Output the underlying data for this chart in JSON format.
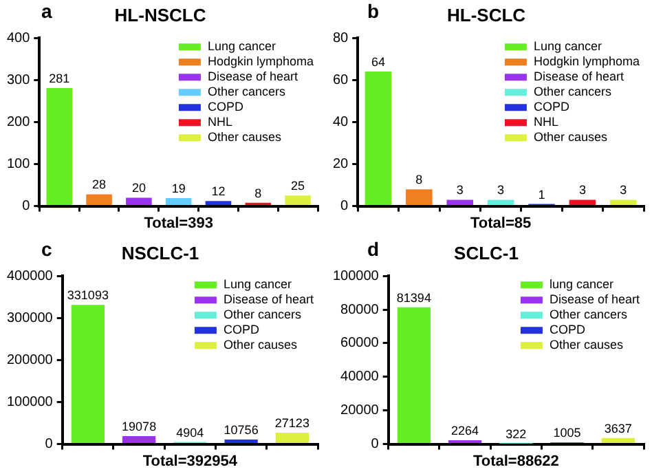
{
  "chart_data": [
    {
      "type": "bar",
      "title": "HL-NSCLC",
      "xlabel": "Total=393",
      "annotations": [
        "a"
      ],
      "categories": [
        null,
        null,
        null,
        null,
        null,
        null,
        null
      ],
      "ylim": [
        0,
        400
      ],
      "yticks": [
        0,
        100,
        200,
        300,
        400
      ],
      "grid": false,
      "legend": "top right",
      "data_labels": true,
      "tick_labels": "y",
      "series": [
        {
          "name": "Lung cancer",
          "color": "#66ee22",
          "values": [
            281,
            null,
            null,
            null,
            null,
            null,
            null
          ]
        },
        {
          "name": "Hodgkin lymphoma",
          "color": "#f07f20",
          "values": [
            null,
            28,
            null,
            null,
            null,
            null,
            null
          ]
        },
        {
          "name": "Disease of heart",
          "color": "#9933ee",
          "values": [
            null,
            null,
            20,
            null,
            null,
            null,
            null
          ]
        },
        {
          "name": "Other cancers",
          "color": "#66ccff",
          "values": [
            null,
            null,
            null,
            19,
            null,
            null,
            null
          ]
        },
        {
          "name": "COPD",
          "color": "#2233dd",
          "values": [
            null,
            null,
            null,
            null,
            12,
            null,
            null
          ]
        },
        {
          "name": "NHL",
          "color": "#ee1122",
          "values": [
            null,
            null,
            null,
            null,
            null,
            8,
            null
          ]
        },
        {
          "name": "Other causes",
          "color": "#ddf040",
          "values": [
            null,
            null,
            null,
            null,
            null,
            null,
            25
          ]
        }
      ]
    },
    {
      "type": "bar",
      "title": "HL-SCLC",
      "xlabel": "Total=85",
      "annotations": [
        "b"
      ],
      "categories": [
        null,
        null,
        null,
        null,
        null,
        null,
        null
      ],
      "ylim": [
        0,
        80
      ],
      "yticks": [
        0,
        20,
        40,
        60,
        80
      ],
      "grid": false,
      "legend": "top right",
      "data_labels": true,
      "tick_labels": "y",
      "series": [
        {
          "name": "Lung cancer",
          "color": "#66ee22",
          "values": [
            64,
            null,
            null,
            null,
            null,
            null,
            null
          ]
        },
        {
          "name": "Hodgkin lymphoma",
          "color": "#f07f20",
          "values": [
            null,
            8,
            null,
            null,
            null,
            null,
            null
          ]
        },
        {
          "name": "Disease of heart",
          "color": "#9933ee",
          "values": [
            null,
            null,
            3,
            null,
            null,
            null,
            null
          ]
        },
        {
          "name": "Other cancers",
          "color": "#66eedd",
          "values": [
            null,
            null,
            null,
            3,
            null,
            null,
            null
          ]
        },
        {
          "name": "COPD",
          "color": "#2233dd",
          "values": [
            null,
            null,
            null,
            null,
            1,
            null,
            null
          ]
        },
        {
          "name": "NHL",
          "color": "#ee1122",
          "values": [
            null,
            null,
            null,
            null,
            null,
            3,
            null
          ]
        },
        {
          "name": "Other causes",
          "color": "#ddf040",
          "values": [
            null,
            null,
            null,
            null,
            null,
            null,
            3
          ]
        }
      ]
    },
    {
      "type": "bar",
      "title": "NSCLC-1",
      "xlabel": "Total=392954",
      "annotations": [
        "c"
      ],
      "categories": [
        null,
        null,
        null,
        null,
        null
      ],
      "ylim": [
        0,
        400000
      ],
      "yticks": [
        0,
        100000,
        200000,
        300000,
        400000
      ],
      "grid": false,
      "legend": "top right",
      "data_labels": true,
      "tick_labels": "y",
      "series": [
        {
          "name": "Lung cancer",
          "color": "#66ee22",
          "values": [
            331093,
            null,
            null,
            null,
            null
          ]
        },
        {
          "name": "Disease of heart",
          "color": "#9933ee",
          "values": [
            null,
            19078,
            null,
            null,
            null
          ]
        },
        {
          "name": "Other cancers",
          "color": "#66eedd",
          "values": [
            null,
            null,
            4904,
            null,
            null
          ]
        },
        {
          "name": "COPD",
          "color": "#2233dd",
          "values": [
            null,
            null,
            null,
            10756,
            null
          ]
        },
        {
          "name": "Other causes",
          "color": "#ddf040",
          "values": [
            null,
            null,
            null,
            null,
            27123
          ]
        }
      ]
    },
    {
      "type": "bar",
      "title": "SCLC-1",
      "xlabel": "Total=88622",
      "annotations": [
        "d"
      ],
      "categories": [
        null,
        null,
        null,
        null,
        null
      ],
      "ylim": [
        0,
        100000
      ],
      "yticks": [
        0,
        20000,
        40000,
        60000,
        80000,
        100000
      ],
      "grid": false,
      "legend": "top right",
      "data_labels": true,
      "tick_labels": "y",
      "series": [
        {
          "name": "lung cancer",
          "color": "#66ee22",
          "values": [
            81394,
            null,
            null,
            null,
            null
          ]
        },
        {
          "name": "Disease of heart",
          "color": "#9933ee",
          "values": [
            null,
            2264,
            null,
            null,
            null
          ]
        },
        {
          "name": "Other cancers",
          "color": "#66eedd",
          "values": [
            null,
            null,
            322,
            null,
            null
          ]
        },
        {
          "name": "COPD",
          "color": "#2233dd",
          "values": [
            null,
            null,
            null,
            1005,
            null
          ]
        },
        {
          "name": "Other causes",
          "color": "#ddf040",
          "values": [
            null,
            null,
            null,
            null,
            3637
          ]
        }
      ]
    }
  ]
}
